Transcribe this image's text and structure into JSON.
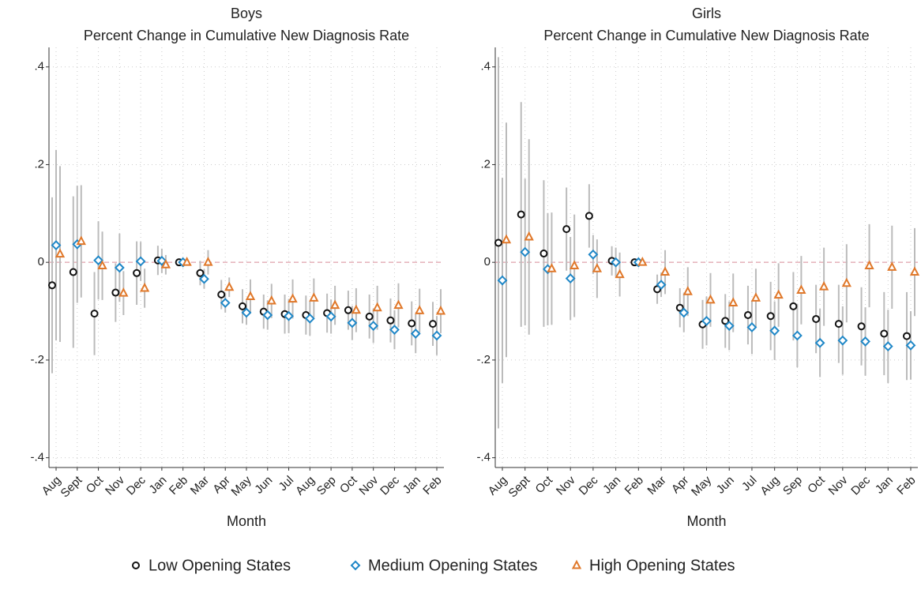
{
  "chart_data": [
    {
      "type": "scatter",
      "title": "Boys",
      "subtitle": "Percent Change in Cumulative New Diagnosis Rate",
      "x_label": "Month",
      "categories": [
        "Aug",
        "Sept",
        "Oct",
        "Nov",
        "Dec",
        "Jan",
        "Feb",
        "Mar",
        "Apr",
        "May",
        "Jun",
        "Jul",
        "Aug",
        "Sep",
        "Oct",
        "Nov",
        "Dec",
        "Jan",
        "Feb"
      ],
      "ylim": [
        -0.42,
        0.44
      ],
      "yticks": [
        {
          "value": 0.4,
          "label": ".4"
        },
        {
          "value": 0.2,
          "label": ".2"
        },
        0,
        {
          "value": -0.2,
          "label": "-.2"
        },
        {
          "value": -0.4,
          "label": "-.4"
        }
      ],
      "grid": true,
      "reference_line": 0,
      "series": [
        {
          "name": "Low Opening States",
          "color": "#111111",
          "marker": "circle",
          "values": [
            -0.047,
            -0.02,
            -0.105,
            -0.062,
            -0.022,
            0.004,
            0,
            -0.022,
            -0.066,
            -0.09,
            -0.101,
            -0.106,
            -0.108,
            -0.104,
            -0.098,
            -0.111,
            -0.119,
            -0.125,
            -0.126
          ],
          "errors": [
            0.18,
            0.155,
            0.085,
            0.06,
            0.065,
            0.03,
            0,
            0.025,
            0.03,
            0.035,
            0.035,
            0.04,
            0.04,
            0.04,
            0.04,
            0.045,
            0.045,
            0.045,
            0.045
          ]
        },
        {
          "name": "Medium Opening States",
          "color": "#1f87c7",
          "marker": "diamond",
          "values": [
            0.035,
            0.037,
            0.004,
            -0.011,
            0.002,
            0.003,
            0,
            -0.034,
            -0.083,
            -0.103,
            -0.108,
            -0.11,
            -0.115,
            -0.111,
            -0.124,
            -0.13,
            -0.138,
            -0.146,
            -0.15
          ],
          "errors": [
            0.195,
            0.12,
            0.08,
            0.07,
            0.04,
            0.025,
            0,
            0.02,
            0.02,
            0.025,
            0.03,
            0.035,
            0.035,
            0.035,
            0.035,
            0.035,
            0.04,
            0.04,
            0.04
          ]
        },
        {
          "name": "High Opening States",
          "color": "#e0782a",
          "marker": "triangle",
          "values": [
            0.017,
            0.043,
            -0.007,
            -0.063,
            -0.053,
            -0.005,
            0,
            0,
            -0.051,
            -0.07,
            -0.079,
            -0.075,
            -0.073,
            -0.088,
            -0.098,
            -0.093,
            -0.088,
            -0.099,
            -0.1
          ],
          "errors": [
            0.18,
            0.115,
            0.07,
            0.045,
            0.04,
            0.02,
            0,
            0.025,
            0.02,
            0.035,
            0.035,
            0.04,
            0.04,
            0.04,
            0.045,
            0.045,
            0.045,
            0.045,
            0.045
          ]
        }
      ]
    },
    {
      "type": "scatter",
      "title": "Girls",
      "subtitle": "Percent Change in Cumulative New Diagnosis Rate",
      "x_label": "Month",
      "categories": [
        "Aug",
        "Sept",
        "Oct",
        "Nov",
        "Dec",
        "Jan",
        "Feb",
        "Mar",
        "Apr",
        "May",
        "Jun",
        "Jul",
        "Aug",
        "Sep",
        "Oct",
        "Nov",
        "Dec",
        "Jan",
        "Feb"
      ],
      "ylim": [
        -0.42,
        0.44
      ],
      "yticks": [
        {
          "value": 0.4,
          "label": ".4"
        },
        {
          "value": 0.2,
          "label": ".2"
        },
        0,
        {
          "value": -0.2,
          "label": "-.2"
        },
        {
          "value": -0.4,
          "label": "-.4"
        }
      ],
      "grid": true,
      "reference_line": 0,
      "series": [
        {
          "name": "Low Opening States",
          "color": "#111111",
          "marker": "circle",
          "values": [
            0.04,
            0.098,
            0.018,
            0.068,
            0.095,
            0.003,
            0,
            -0.055,
            -0.093,
            -0.127,
            -0.12,
            -0.108,
            -0.11,
            -0.09,
            -0.116,
            -0.126,
            -0.131,
            -0.146,
            -0.151
          ],
          "errors": [
            0.38,
            0.23,
            0.15,
            0.085,
            0.065,
            0.03,
            0,
            0.03,
            0.04,
            0.05,
            0.055,
            0.06,
            0.07,
            0.07,
            0.07,
            0.08,
            0.08,
            0.085,
            0.09
          ]
        },
        {
          "name": "Medium Opening States",
          "color": "#1f87c7",
          "marker": "diamond",
          "values": [
            -0.037,
            0.021,
            -0.014,
            -0.033,
            0.016,
            0,
            0,
            -0.046,
            -0.103,
            -0.12,
            -0.13,
            -0.133,
            -0.14,
            -0.15,
            -0.165,
            -0.16,
            -0.162,
            -0.172,
            -0.17
          ],
          "errors": [
            0.21,
            0.15,
            0.115,
            0.085,
            0.04,
            0.03,
            0,
            0.025,
            0.04,
            0.05,
            0.05,
            0.055,
            0.06,
            0.065,
            0.07,
            0.07,
            0.07,
            0.075,
            0.07
          ]
        },
        {
          "name": "High Opening States",
          "color": "#e0782a",
          "marker": "triangle",
          "values": [
            0.046,
            0.052,
            -0.013,
            -0.007,
            -0.013,
            -0.025,
            0,
            -0.02,
            -0.06,
            -0.077,
            -0.083,
            -0.073,
            -0.067,
            -0.057,
            -0.05,
            -0.043,
            -0.007,
            -0.01,
            -0.02
          ],
          "errors": [
            0.24,
            0.2,
            0.115,
            0.105,
            0.06,
            0.045,
            0,
            0.045,
            0.05,
            0.055,
            0.06,
            0.06,
            0.065,
            0.07,
            0.08,
            0.08,
            0.085,
            0.085,
            0.09
          ]
        }
      ]
    }
  ]
}
